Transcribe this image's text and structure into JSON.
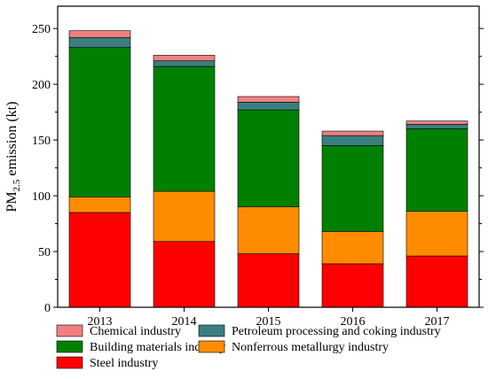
{
  "chart_data": {
    "type": "bar",
    "stacked": true,
    "categories": [
      "2013",
      "2014",
      "2015",
      "2016",
      "2017"
    ],
    "ylabel": "PM2.5 emission (kt)",
    "ylabel_parts": {
      "main": "PM",
      "subscript": "2.5",
      "rest": " emission (kt)"
    },
    "ylim": [
      0,
      270
    ],
    "yticks": [
      0,
      50,
      100,
      150,
      200,
      250
    ],
    "legend_position": "bottom",
    "series": [
      {
        "name": "Steel industry",
        "color": "#ff0000",
        "values": [
          85,
          59,
          48,
          39,
          46
        ]
      },
      {
        "name": "Nonferrous metallurgy industry",
        "color": "#ff8c00",
        "values": [
          14,
          45,
          42,
          29,
          40
        ]
      },
      {
        "name": "Building materials industry",
        "color": "#008000",
        "values": [
          134,
          112,
          87,
          77,
          74
        ]
      },
      {
        "name": "Petroleum processing and coking industry",
        "color": "#3a7f7f",
        "values": [
          9,
          5,
          7,
          9,
          4
        ]
      },
      {
        "name": "Chemical industry",
        "color": "#f08080",
        "values": [
          6,
          5,
          5,
          4,
          3
        ]
      }
    ],
    "legend_order": [
      "Chemical industry",
      "Petroleum processing and coking industry",
      "Building materials industry",
      "Nonferrous metallurgy industry",
      "Steel industry"
    ]
  }
}
